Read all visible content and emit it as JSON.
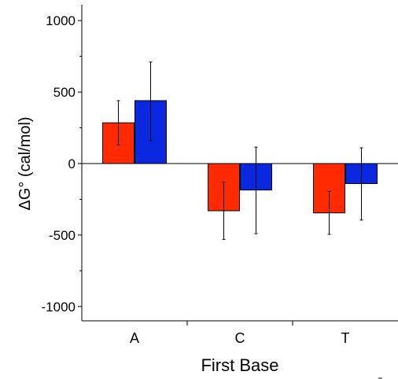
{
  "chart_data": {
    "type": "bar",
    "xlabel": "First Base",
    "ylabel": "ΔG° (cal/mol)",
    "categories": [
      "A",
      "C",
      "T"
    ],
    "ylim": [
      -1100,
      1100
    ],
    "yticks": [
      1000,
      500,
      0,
      -500,
      -1000
    ],
    "ytick_labels": [
      "1000",
      "500",
      "0",
      "-500",
      "-1000"
    ],
    "grid": false,
    "series": [
      {
        "color": "#ff2a00",
        "values": [
          285,
          -330,
          -345
        ],
        "errors": [
          [
            130,
            440
          ],
          [
            -530,
            -130
          ],
          [
            -495,
            -195
          ]
        ]
      },
      {
        "color": "#0a28e0",
        "values": [
          440,
          -185,
          -140
        ],
        "errors": [
          [
            160,
            710
          ],
          [
            -490,
            115
          ],
          [
            -395,
            110
          ]
        ]
      }
    ]
  }
}
